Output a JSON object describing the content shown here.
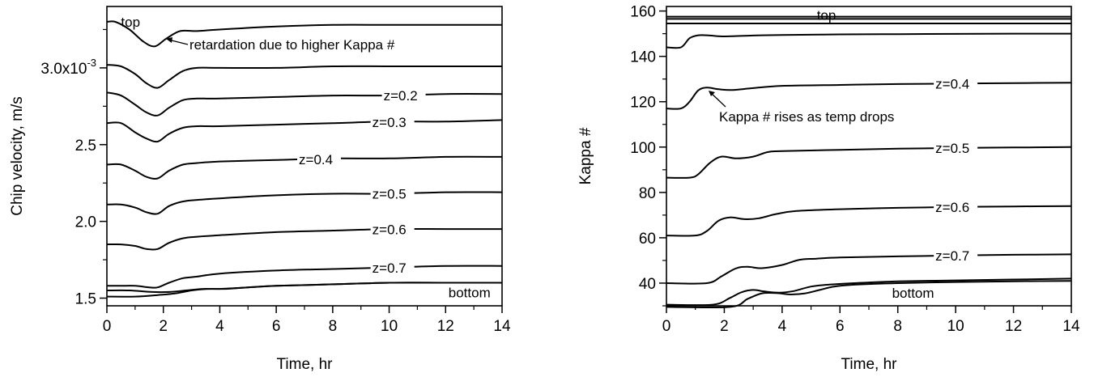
{
  "chart_data": [
    {
      "type": "line",
      "xlabel": "Time, hr",
      "ylabel": "Chip velocity, m/s",
      "xlim": [
        0,
        14
      ],
      "ylim": [
        1.45,
        3.4
      ],
      "grid": false,
      "xticks": [
        "0",
        "2",
        "4",
        "6",
        "8",
        "10",
        "12",
        "14"
      ],
      "yticks": [
        "1.5",
        "2.0",
        "2.5",
        "3.0x10-3"
      ],
      "series": [
        {
          "name": "top",
          "x": [
            0,
            0.3,
            0.8,
            1.3,
            1.7,
            2.1,
            2.6,
            3.2,
            4,
            6,
            8,
            10,
            12,
            14
          ],
          "y": [
            3.3,
            3.3,
            3.25,
            3.17,
            3.14,
            3.19,
            3.24,
            3.24,
            3.25,
            3.27,
            3.28,
            3.28,
            3.28,
            3.28
          ]
        },
        {
          "name": "",
          "x": [
            0,
            0.5,
            1.0,
            1.4,
            1.8,
            2.2,
            2.7,
            3.2,
            4,
            6,
            8,
            10,
            12,
            14
          ],
          "y": [
            3.02,
            3.01,
            2.96,
            2.9,
            2.87,
            2.92,
            2.98,
            3.0,
            3.0,
            3.0,
            3.01,
            3.01,
            3.01,
            3.01
          ]
        },
        {
          "name": "z=0.2",
          "x": [
            0,
            0.5,
            1.0,
            1.4,
            1.8,
            2.2,
            2.7,
            3.2,
            4,
            6,
            8,
            10,
            12,
            14
          ],
          "y": [
            2.84,
            2.82,
            2.76,
            2.71,
            2.69,
            2.74,
            2.79,
            2.8,
            2.8,
            2.81,
            2.82,
            2.82,
            2.83,
            2.83
          ]
        },
        {
          "name": "z=0.3",
          "x": [
            0,
            0.5,
            1.0,
            1.4,
            1.8,
            2.2,
            2.7,
            3.2,
            4,
            6,
            8,
            10,
            12,
            14
          ],
          "y": [
            2.64,
            2.64,
            2.58,
            2.54,
            2.52,
            2.57,
            2.61,
            2.62,
            2.62,
            2.63,
            2.64,
            2.65,
            2.65,
            2.66
          ]
        },
        {
          "name": "z=0.4",
          "x": [
            0,
            0.5,
            1.0,
            1.4,
            1.8,
            2.2,
            2.7,
            3.2,
            4,
            6,
            8,
            10,
            12,
            14
          ],
          "y": [
            2.37,
            2.37,
            2.33,
            2.29,
            2.28,
            2.33,
            2.37,
            2.38,
            2.39,
            2.4,
            2.41,
            2.41,
            2.42,
            2.42
          ]
        },
        {
          "name": "z=0.5",
          "x": [
            0,
            0.5,
            1.0,
            1.4,
            1.8,
            2.2,
            2.7,
            3.2,
            4,
            6,
            8,
            10,
            12,
            14
          ],
          "y": [
            2.11,
            2.11,
            2.09,
            2.06,
            2.05,
            2.1,
            2.13,
            2.14,
            2.15,
            2.17,
            2.18,
            2.18,
            2.19,
            2.19
          ]
        },
        {
          "name": "z=0.6",
          "x": [
            0,
            0.5,
            1.0,
            1.4,
            1.8,
            2.2,
            2.7,
            3.2,
            4,
            6,
            8,
            10,
            12,
            14
          ],
          "y": [
            1.85,
            1.85,
            1.84,
            1.82,
            1.82,
            1.86,
            1.89,
            1.9,
            1.91,
            1.93,
            1.94,
            1.95,
            1.95,
            1.95
          ]
        },
        {
          "name": "z=0.7",
          "x": [
            0,
            0.5,
            1.0,
            1.5,
            1.8,
            2.2,
            2.7,
            3.2,
            4,
            6,
            8,
            10,
            12,
            14
          ],
          "y": [
            1.58,
            1.58,
            1.58,
            1.57,
            1.57,
            1.6,
            1.63,
            1.64,
            1.66,
            1.68,
            1.69,
            1.7,
            1.71,
            1.71
          ]
        },
        {
          "name": "",
          "x": [
            0,
            0.8,
            1.6,
            2.2,
            2.8,
            3.4,
            4,
            5,
            6,
            8,
            10,
            12,
            14
          ],
          "y": [
            1.55,
            1.55,
            1.54,
            1.54,
            1.55,
            1.56,
            1.56,
            1.57,
            1.58,
            1.59,
            1.6,
            1.6,
            1.6
          ]
        },
        {
          "name": "bottom",
          "x": [
            0,
            1.0,
            1.8,
            2.4,
            3.0,
            3.6,
            4.2,
            5,
            6,
            8,
            10,
            12
          ],
          "y": [
            1.51,
            1.51,
            1.52,
            1.53,
            1.55,
            1.56,
            1.56,
            1.57,
            1.58,
            1.59,
            1.6,
            1.6
          ]
        }
      ],
      "annotations": [
        "retardation due to higher Kappa #"
      ]
    },
    {
      "type": "line",
      "xlabel": "Time, hr",
      "ylabel": "Kappa #",
      "xlim": [
        0,
        14
      ],
      "ylim": [
        30,
        162
      ],
      "grid": false,
      "xticks": [
        "0",
        "2",
        "4",
        "6",
        "8",
        "10",
        "12",
        "14"
      ],
      "yticks": [
        "40",
        "60",
        "80",
        "100",
        "120",
        "140",
        "160"
      ],
      "series": [
        {
          "name": "top",
          "x": [
            0,
            14
          ],
          "y": [
            157.5,
            157.5
          ]
        },
        {
          "name": "",
          "x": [
            0,
            14
          ],
          "y": [
            156.5,
            156.5
          ]
        },
        {
          "name": "",
          "x": [
            0,
            14
          ],
          "y": [
            154.5,
            154.5
          ]
        },
        {
          "name": "",
          "x": [
            0,
            0.5,
            0.8,
            1.1,
            1.5,
            2,
            3,
            4,
            6,
            8,
            10,
            12,
            14
          ],
          "y": [
            144,
            144,
            148,
            149.3,
            149.2,
            148.8,
            149.2,
            149.4,
            149.7,
            149.8,
            149.9,
            150,
            150
          ]
        },
        {
          "name": "z=0.4",
          "x": [
            0,
            0.5,
            0.8,
            1.1,
            1.4,
            1.8,
            2.3,
            3,
            4,
            6,
            8,
            10,
            12,
            14
          ],
          "y": [
            117,
            117,
            120,
            125,
            126.2,
            125.5,
            125.2,
            126,
            127,
            127.4,
            127.8,
            128,
            128.2,
            128.4
          ]
        },
        {
          "name": "z=0.5",
          "x": [
            0,
            0.8,
            1.1,
            1.5,
            1.9,
            2.4,
            3.0,
            3.5,
            4,
            6,
            8,
            10,
            12,
            14
          ],
          "y": [
            86.5,
            86.5,
            88,
            93,
            95.8,
            95,
            95.8,
            97.8,
            98.2,
            98.8,
            99.3,
            99.6,
            99.8,
            100
          ]
        },
        {
          "name": "z=0.6",
          "x": [
            0,
            1.0,
            1.4,
            1.8,
            2.2,
            2.7,
            3.2,
            3.8,
            4.5,
            6,
            8,
            10,
            12,
            14
          ],
          "y": [
            61,
            61,
            63,
            67.5,
            69,
            68.2,
            68.6,
            70.5,
            71.8,
            72.6,
            73.2,
            73.6,
            73.8,
            74
          ]
        },
        {
          "name": "z=0.7",
          "x": [
            0,
            1.4,
            1.9,
            2.4,
            2.8,
            3.3,
            4.0,
            4.6,
            5.2,
            6,
            8,
            10,
            12,
            14
          ],
          "y": [
            40,
            40,
            43,
            46.5,
            47.2,
            46.6,
            48,
            50.3,
            50.8,
            51.3,
            51.8,
            52.2,
            52.5,
            52.7
          ]
        },
        {
          "name": "",
          "x": [
            0,
            1.6,
            2.2,
            2.6,
            3.0,
            3.4,
            3.9,
            4.4,
            5.0,
            5.6,
            6.5,
            8,
            10,
            12,
            14
          ],
          "y": [
            30.5,
            30.5,
            33.5,
            36,
            37,
            36.3,
            35.8,
            36.5,
            38.5,
            39.3,
            40,
            40.8,
            41.2,
            41.6,
            42
          ]
        },
        {
          "name": "bottom",
          "x": [
            0,
            2.2,
            2.8,
            3.3,
            3.8,
            4.3,
            4.8,
            5.3,
            5.8,
            6.5,
            8,
            10,
            12,
            14
          ],
          "y": [
            29.5,
            29.5,
            33,
            35.5,
            35.6,
            35,
            35.5,
            37,
            38.5,
            39.3,
            40,
            40.5,
            40.8,
            41
          ]
        }
      ],
      "annotations": [
        "Kappa # rises as temp drops"
      ]
    }
  ]
}
